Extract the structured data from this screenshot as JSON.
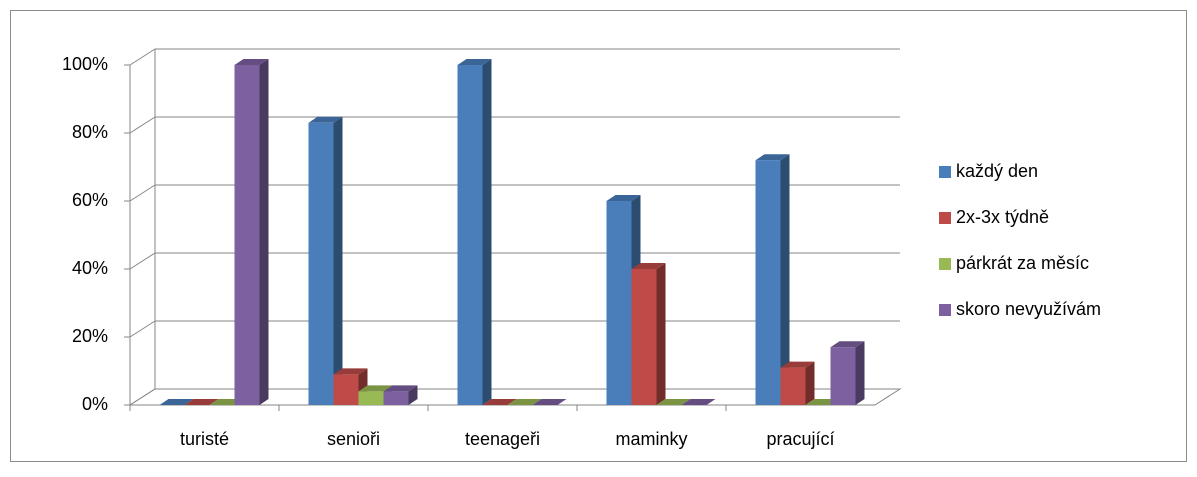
{
  "chart_data": {
    "type": "bar3d",
    "categories": [
      "turisté",
      "senioři",
      "teenageři",
      "maminky",
      "pracující"
    ],
    "series": [
      {
        "name": "každý den",
        "color": "#4a7ebb",
        "values": [
          0,
          83,
          100,
          60,
          72
        ]
      },
      {
        "name": "2x-3x týdně",
        "color": "#be4b48",
        "values": [
          0,
          9,
          0,
          40,
          11
        ]
      },
      {
        "name": "párkrát za měsíc",
        "color": "#98b954",
        "values": [
          0,
          4,
          0,
          0,
          0
        ]
      },
      {
        "name": "skoro nevyužívám",
        "color": "#7d60a0",
        "values": [
          100,
          4,
          0,
          0,
          17
        ]
      }
    ],
    "ylim": [
      0,
      100
    ],
    "yticks": [
      {
        "value": 0,
        "label": "0%"
      },
      {
        "value": 20,
        "label": "20%"
      },
      {
        "value": 40,
        "label": "40%"
      },
      {
        "value": 60,
        "label": "60%"
      },
      {
        "value": 80,
        "label": "80%"
      },
      {
        "value": 100,
        "label": "100%"
      }
    ],
    "grid": true,
    "legend": "right"
  }
}
